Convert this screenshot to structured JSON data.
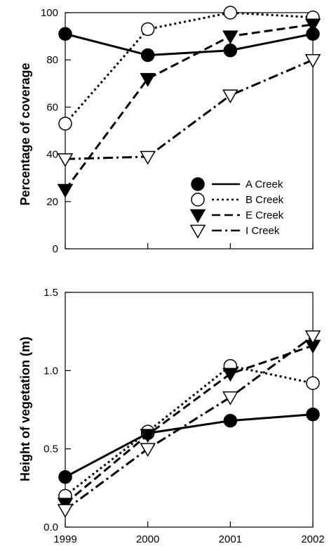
{
  "chart_data": [
    {
      "type": "line",
      "title": "",
      "xlabel": "",
      "ylabel": "Percentage of coverage",
      "x": [
        1999,
        2000,
        2001,
        2002
      ],
      "xlim": [
        1999,
        2002
      ],
      "ylim": [
        0,
        100
      ],
      "yticks": [
        "0",
        "20",
        "40",
        "60",
        "80",
        "100"
      ],
      "grid": false,
      "legend_position": "bottom-right",
      "series": [
        {
          "name": "A Creek",
          "marker": "filled-circle",
          "line": "solid",
          "values": [
            91,
            82,
            84,
            91
          ]
        },
        {
          "name": "B Creek",
          "marker": "open-circle",
          "line": "dotted",
          "values": [
            53,
            93,
            100,
            98
          ]
        },
        {
          "name": "E Creek",
          "marker": "filled-triangle-down",
          "line": "dashed",
          "values": [
            25,
            72,
            90,
            95
          ]
        },
        {
          "name": "I Creek",
          "marker": "open-triangle-down",
          "line": "dash-dot",
          "values": [
            38,
            39,
            65,
            80
          ]
        }
      ]
    },
    {
      "type": "line",
      "title": "",
      "xlabel": "",
      "ylabel": "Height of vegetation (m)",
      "x": [
        1999,
        2000,
        2001,
        2002
      ],
      "xlim": [
        1999,
        2002
      ],
      "xticks": [
        "1999",
        "2000",
        "2001",
        "2002"
      ],
      "ylim": [
        0,
        1.5
      ],
      "yticks": [
        "0.0",
        "0.5",
        "1.0",
        "1.5"
      ],
      "grid": false,
      "series": [
        {
          "name": "A Creek",
          "marker": "filled-circle",
          "line": "solid",
          "values": [
            0.32,
            0.6,
            0.68,
            0.72
          ]
        },
        {
          "name": "B Creek",
          "marker": "open-circle",
          "line": "dotted",
          "values": [
            0.2,
            0.61,
            1.03,
            0.92
          ]
        },
        {
          "name": "E Creek",
          "marker": "filled-triangle-down",
          "line": "dashed",
          "values": [
            0.15,
            0.59,
            0.98,
            1.16
          ]
        },
        {
          "name": "I Creek",
          "marker": "open-triangle-down",
          "line": "dash-dot",
          "values": [
            0.11,
            0.5,
            0.83,
            1.22
          ]
        }
      ]
    }
  ],
  "colors": {
    "ink": "#000000",
    "background": "#ffffff"
  }
}
